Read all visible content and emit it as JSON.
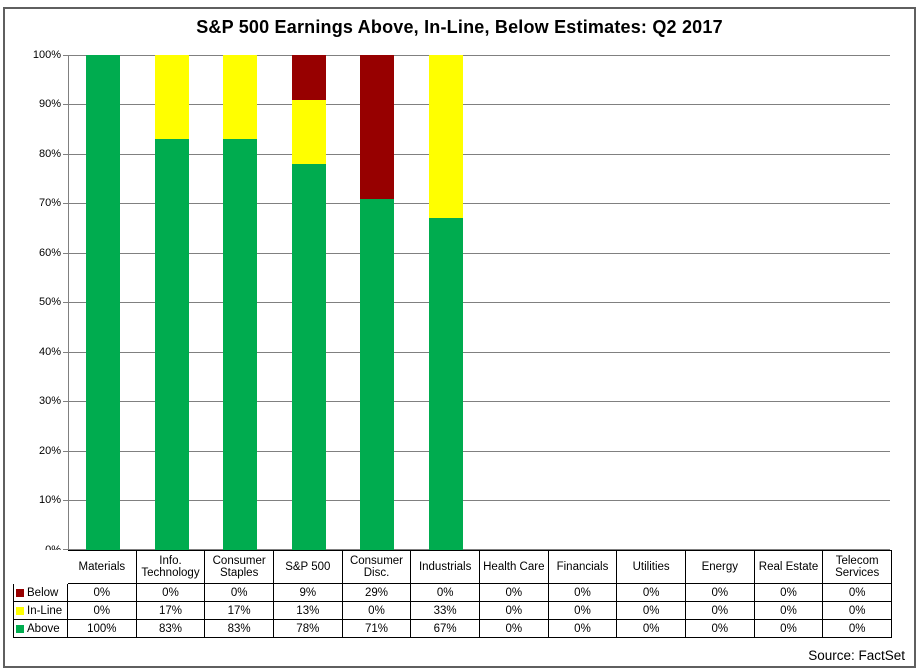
{
  "title": "S&P 500 Earnings Above, In-Line, Below Estimates: Q2 2017",
  "source": "Source: FactSet",
  "colors": {
    "above": "#00AC4F",
    "inline": "#FFFF00",
    "below": "#970000",
    "gridline": "#808080",
    "table_border": "#000000"
  },
  "chart_data": {
    "type": "bar",
    "stacked": true,
    "title": "S&P 500 Earnings Above, In-Line, Below Estimates: Q2 2017",
    "categories": [
      "Materials",
      "Info. Technology",
      "Consumer Staples",
      "S&P 500",
      "Consumer Disc.",
      "Industrials",
      "Health Care",
      "Financials",
      "Utilities",
      "Energy",
      "Real Estate",
      "Telecom Services"
    ],
    "series": [
      {
        "name": "Below",
        "color_key": "below",
        "values": [
          0,
          0,
          0,
          9,
          29,
          0,
          0,
          0,
          0,
          0,
          0,
          0
        ]
      },
      {
        "name": "In-Line",
        "color_key": "inline",
        "values": [
          0,
          17,
          17,
          13,
          0,
          33,
          0,
          0,
          0,
          0,
          0,
          0
        ]
      },
      {
        "name": "Above",
        "color_key": "above",
        "values": [
          100,
          83,
          83,
          78,
          71,
          67,
          0,
          0,
          0,
          0,
          0,
          0
        ]
      }
    ],
    "xlabel": "",
    "ylabel": "",
    "ylim": [
      0,
      100
    ],
    "ytick_labels": [
      "0%",
      "10%",
      "20%",
      "30%",
      "40%",
      "50%",
      "60%",
      "70%",
      "80%",
      "90%",
      "100%"
    ],
    "grid": true,
    "legend_position": "data-table-left"
  }
}
